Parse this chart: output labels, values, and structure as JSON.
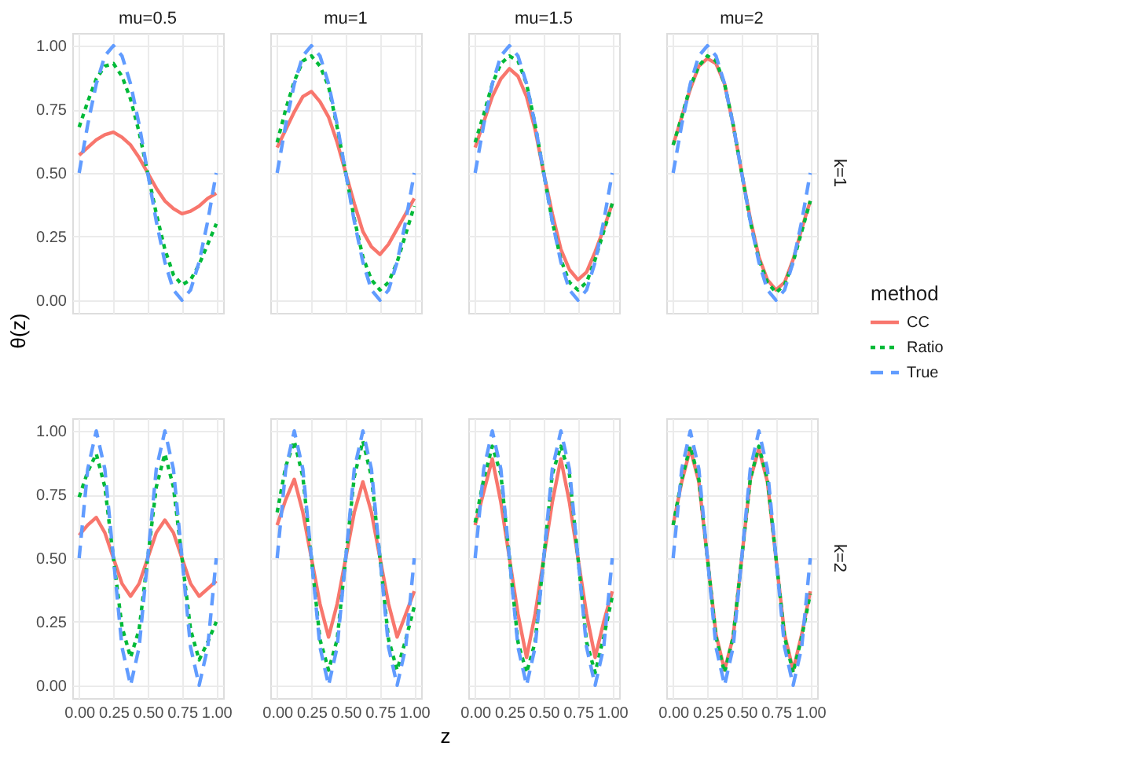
{
  "chart_data": [
    {
      "type": "line",
      "title": "mu=0.5",
      "ylabel": "θ(z)",
      "tick_labels": "y",
      "grid": true,
      "xlim": [
        -0.05,
        1.05
      ],
      "ylim": [
        -0.05,
        1.05
      ],
      "xticks": [
        0,
        0.25,
        0.5,
        0.75,
        1
      ],
      "yticks": [
        {
          "value": 0,
          "label": "0.00"
        },
        {
          "value": 0.25,
          "label": "0.25"
        },
        {
          "value": 0.5,
          "label": "0.50"
        },
        {
          "value": 0.75,
          "label": "0.75"
        },
        {
          "value": 1,
          "label": "1.00"
        }
      ],
      "x": [
        0,
        0.0625,
        0.125,
        0.1875,
        0.25,
        0.3125,
        0.375,
        0.4375,
        0.5,
        0.5625,
        0.625,
        0.6875,
        0.75,
        0.8125,
        0.875,
        0.9375,
        1
      ],
      "series": [
        {
          "color": "#f8766d",
          "line_style": "solid",
          "values": [
            0.57,
            0.6,
            0.63,
            0.65,
            0.66,
            0.64,
            0.61,
            0.56,
            0.5,
            0.44,
            0.39,
            0.36,
            0.34,
            0.35,
            0.37,
            0.4,
            0.42
          ]
        },
        {
          "color": "#00ba38",
          "line_style": "dotted",
          "values": [
            0.68,
            0.78,
            0.87,
            0.92,
            0.93,
            0.88,
            0.79,
            0.66,
            0.5,
            0.34,
            0.2,
            0.1,
            0.06,
            0.08,
            0.14,
            0.22,
            0.3
          ]
        },
        {
          "color": "#619cff",
          "line_style": "dashed",
          "values": [
            0.5,
            0.69,
            0.85,
            0.96,
            1,
            0.96,
            0.85,
            0.69,
            0.5,
            0.31,
            0.15,
            0.04,
            0,
            0.04,
            0.15,
            0.31,
            0.5
          ]
        }
      ]
    },
    {
      "type": "line",
      "title": "mu=1",
      "tick_labels": false,
      "grid": true,
      "xlim": [
        -0.05,
        1.05
      ],
      "ylim": [
        -0.05,
        1.05
      ],
      "xticks": [
        0,
        0.25,
        0.5,
        0.75,
        1
      ],
      "yticks": [
        0,
        0.25,
        0.5,
        0.75,
        1
      ],
      "x": [
        0,
        0.0625,
        0.125,
        0.1875,
        0.25,
        0.3125,
        0.375,
        0.4375,
        0.5,
        0.5625,
        0.625,
        0.6875,
        0.75,
        0.8125,
        0.875,
        0.9375,
        1
      ],
      "series": [
        {
          "color": "#f8766d",
          "line_style": "solid",
          "values": [
            0.6,
            0.67,
            0.74,
            0.8,
            0.82,
            0.78,
            0.72,
            0.62,
            0.5,
            0.38,
            0.27,
            0.21,
            0.18,
            0.22,
            0.28,
            0.34,
            0.4
          ]
        },
        {
          "color": "#00ba38",
          "line_style": "dotted",
          "values": [
            0.62,
            0.75,
            0.86,
            0.94,
            0.96,
            0.92,
            0.84,
            0.68,
            0.5,
            0.32,
            0.17,
            0.08,
            0.04,
            0.07,
            0.15,
            0.26,
            0.37
          ]
        },
        {
          "color": "#619cff",
          "line_style": "dashed",
          "values": [
            0.5,
            0.69,
            0.85,
            0.96,
            1,
            0.96,
            0.85,
            0.69,
            0.5,
            0.31,
            0.15,
            0.04,
            0,
            0.04,
            0.15,
            0.31,
            0.5
          ]
        }
      ]
    },
    {
      "type": "line",
      "title": "mu=1.5",
      "tick_labels": false,
      "grid": true,
      "xlim": [
        -0.05,
        1.05
      ],
      "ylim": [
        -0.05,
        1.05
      ],
      "xticks": [
        0,
        0.25,
        0.5,
        0.75,
        1
      ],
      "yticks": [
        0,
        0.25,
        0.5,
        0.75,
        1
      ],
      "x": [
        0,
        0.0625,
        0.125,
        0.1875,
        0.25,
        0.3125,
        0.375,
        0.4375,
        0.5,
        0.5625,
        0.625,
        0.6875,
        0.75,
        0.8125,
        0.875,
        0.9375,
        1
      ],
      "series": [
        {
          "color": "#f8766d",
          "line_style": "solid",
          "values": [
            0.6,
            0.7,
            0.8,
            0.87,
            0.91,
            0.88,
            0.8,
            0.67,
            0.5,
            0.34,
            0.2,
            0.12,
            0.08,
            0.11,
            0.19,
            0.28,
            0.38
          ]
        },
        {
          "color": "#00ba38",
          "line_style": "dotted",
          "values": [
            0.62,
            0.73,
            0.85,
            0.93,
            0.96,
            0.94,
            0.85,
            0.69,
            0.5,
            0.31,
            0.16,
            0.07,
            0.04,
            0.07,
            0.16,
            0.27,
            0.38
          ]
        },
        {
          "color": "#619cff",
          "line_style": "dashed",
          "values": [
            0.5,
            0.69,
            0.85,
            0.96,
            1,
            0.96,
            0.85,
            0.69,
            0.5,
            0.31,
            0.15,
            0.04,
            0,
            0.04,
            0.15,
            0.31,
            0.5
          ]
        }
      ]
    },
    {
      "type": "line",
      "title": "mu=2",
      "y2label": "k=1",
      "tick_labels": false,
      "grid": true,
      "legend": "right",
      "legend_title": "method",
      "xlim": [
        -0.05,
        1.05
      ],
      "ylim": [
        -0.05,
        1.05
      ],
      "xticks": [
        0,
        0.25,
        0.5,
        0.75,
        1
      ],
      "yticks": [
        0,
        0.25,
        0.5,
        0.75,
        1
      ],
      "x": [
        0,
        0.0625,
        0.125,
        0.1875,
        0.25,
        0.3125,
        0.375,
        0.4375,
        0.5,
        0.5625,
        0.625,
        0.6875,
        0.75,
        0.8125,
        0.875,
        0.9375,
        1
      ],
      "series": [
        {
          "name": "CC",
          "color": "#f8766d",
          "line_style": "solid",
          "values": [
            0.61,
            0.72,
            0.83,
            0.92,
            0.95,
            0.93,
            0.85,
            0.69,
            0.5,
            0.32,
            0.17,
            0.08,
            0.04,
            0.07,
            0.16,
            0.28,
            0.39
          ]
        },
        {
          "name": "Ratio",
          "color": "#00ba38",
          "line_style": "dotted",
          "values": [
            0.61,
            0.72,
            0.84,
            0.92,
            0.96,
            0.94,
            0.85,
            0.69,
            0.5,
            0.31,
            0.16,
            0.07,
            0.03,
            0.06,
            0.15,
            0.27,
            0.39
          ]
        },
        {
          "name": "True",
          "color": "#619cff",
          "line_style": "dashed",
          "values": [
            0.5,
            0.69,
            0.85,
            0.96,
            1,
            0.96,
            0.85,
            0.69,
            0.5,
            0.31,
            0.15,
            0.04,
            0,
            0.04,
            0.15,
            0.31,
            0.5
          ]
        }
      ]
    },
    {
      "type": "line",
      "grid": true,
      "xlim": [
        -0.05,
        1.05
      ],
      "ylim": [
        -0.05,
        1.05
      ],
      "xticks": [
        {
          "value": 0,
          "label": "0.00"
        },
        {
          "value": 0.25,
          "label": "0.25"
        },
        {
          "value": 0.5,
          "label": "0.50"
        },
        {
          "value": 0.75,
          "label": "0.75"
        },
        {
          "value": 1,
          "label": "1.00"
        }
      ],
      "yticks": [
        {
          "value": 0,
          "label": "0.00"
        },
        {
          "value": 0.25,
          "label": "0.25"
        },
        {
          "value": 0.5,
          "label": "0.50"
        },
        {
          "value": 0.75,
          "label": "0.75"
        },
        {
          "value": 1,
          "label": "1.00"
        }
      ],
      "x": [
        0,
        0.0625,
        0.125,
        0.1875,
        0.25,
        0.3125,
        0.375,
        0.4375,
        0.5,
        0.5625,
        0.625,
        0.6875,
        0.75,
        0.8125,
        0.875,
        0.9375,
        1
      ],
      "series": [
        {
          "color": "#f8766d",
          "line_style": "solid",
          "values": [
            0.59,
            0.63,
            0.66,
            0.6,
            0.5,
            0.4,
            0.35,
            0.4,
            0.5,
            0.6,
            0.65,
            0.6,
            0.5,
            0.4,
            0.35,
            0.38,
            0.41
          ]
        },
        {
          "color": "#00ba38",
          "line_style": "dotted",
          "values": [
            0.74,
            0.84,
            0.91,
            0.78,
            0.5,
            0.23,
            0.11,
            0.22,
            0.5,
            0.78,
            0.91,
            0.78,
            0.5,
            0.22,
            0.1,
            0.17,
            0.25
          ]
        },
        {
          "color": "#619cff",
          "line_style": "dashed",
          "values": [
            0.5,
            0.85,
            1,
            0.85,
            0.5,
            0.15,
            0,
            0.15,
            0.5,
            0.85,
            1,
            0.85,
            0.5,
            0.15,
            0,
            0.15,
            0.5
          ]
        }
      ]
    },
    {
      "type": "line",
      "xlabel": "z",
      "tick_labels": "x",
      "grid": true,
      "xlim": [
        -0.05,
        1.05
      ],
      "ylim": [
        -0.05,
        1.05
      ],
      "xticks": [
        {
          "value": 0,
          "label": "0.00"
        },
        {
          "value": 0.25,
          "label": "0.25"
        },
        {
          "value": 0.5,
          "label": "0.50"
        },
        {
          "value": 0.75,
          "label": "0.75"
        },
        {
          "value": 1,
          "label": "1.00"
        }
      ],
      "yticks": [
        0,
        0.25,
        0.5,
        0.75,
        1
      ],
      "x": [
        0,
        0.0625,
        0.125,
        0.1875,
        0.25,
        0.3125,
        0.375,
        0.4375,
        0.5,
        0.5625,
        0.625,
        0.6875,
        0.75,
        0.8125,
        0.875,
        0.9375,
        1
      ],
      "series": [
        {
          "color": "#f8766d",
          "line_style": "solid",
          "values": [
            0.63,
            0.73,
            0.81,
            0.68,
            0.5,
            0.32,
            0.19,
            0.32,
            0.5,
            0.68,
            0.8,
            0.68,
            0.5,
            0.32,
            0.19,
            0.28,
            0.37
          ]
        },
        {
          "color": "#00ba38",
          "line_style": "dotted",
          "values": [
            0.68,
            0.86,
            0.96,
            0.82,
            0.5,
            0.18,
            0.06,
            0.18,
            0.5,
            0.82,
            0.96,
            0.82,
            0.5,
            0.18,
            0.06,
            0.18,
            0.31
          ]
        },
        {
          "color": "#619cff",
          "line_style": "dashed",
          "values": [
            0.5,
            0.85,
            1,
            0.85,
            0.5,
            0.15,
            0,
            0.15,
            0.5,
            0.85,
            1,
            0.85,
            0.5,
            0.15,
            0,
            0.15,
            0.5
          ]
        }
      ]
    },
    {
      "type": "line",
      "tick_labels": "x",
      "grid": true,
      "xlim": [
        -0.05,
        1.05
      ],
      "ylim": [
        -0.05,
        1.05
      ],
      "xticks": [
        {
          "value": 0,
          "label": "0.00"
        },
        {
          "value": 0.25,
          "label": "0.25"
        },
        {
          "value": 0.5,
          "label": "0.50"
        },
        {
          "value": 0.75,
          "label": "0.75"
        },
        {
          "value": 1,
          "label": "1.00"
        }
      ],
      "yticks": [
        0,
        0.25,
        0.5,
        0.75,
        1
      ],
      "x": [
        0,
        0.0625,
        0.125,
        0.1875,
        0.25,
        0.3125,
        0.375,
        0.4375,
        0.5,
        0.5625,
        0.625,
        0.6875,
        0.75,
        0.8125,
        0.875,
        0.9375,
        1
      ],
      "series": [
        {
          "color": "#f8766d",
          "line_style": "solid",
          "values": [
            0.63,
            0.76,
            0.89,
            0.72,
            0.5,
            0.28,
            0.11,
            0.28,
            0.5,
            0.72,
            0.89,
            0.72,
            0.5,
            0.28,
            0.11,
            0.25,
            0.37
          ]
        },
        {
          "color": "#00ba38",
          "line_style": "dotted",
          "values": [
            0.64,
            0.81,
            0.94,
            0.83,
            0.5,
            0.17,
            0.05,
            0.17,
            0.5,
            0.83,
            0.94,
            0.83,
            0.5,
            0.17,
            0.05,
            0.19,
            0.35
          ]
        },
        {
          "color": "#619cff",
          "line_style": "dashed",
          "values": [
            0.5,
            0.85,
            1,
            0.85,
            0.5,
            0.15,
            0,
            0.15,
            0.5,
            0.85,
            1,
            0.85,
            0.5,
            0.15,
            0,
            0.15,
            0.5
          ]
        }
      ]
    },
    {
      "type": "line",
      "y2label": "k=2",
      "tick_labels": "x",
      "grid": true,
      "xlim": [
        -0.05,
        1.05
      ],
      "ylim": [
        -0.05,
        1.05
      ],
      "xticks": [
        {
          "value": 0,
          "label": "0.00"
        },
        {
          "value": 0.25,
          "label": "0.25"
        },
        {
          "value": 0.5,
          "label": "0.50"
        },
        {
          "value": 0.75,
          "label": "0.75"
        },
        {
          "value": 1,
          "label": "1.00"
        }
      ],
      "yticks": [
        0,
        0.25,
        0.5,
        0.75,
        1
      ],
      "x": [
        0,
        0.0625,
        0.125,
        0.1875,
        0.25,
        0.3125,
        0.375,
        0.4375,
        0.5,
        0.5625,
        0.625,
        0.6875,
        0.75,
        0.8125,
        0.875,
        0.9375,
        1
      ],
      "series": [
        {
          "color": "#f8766d",
          "line_style": "solid",
          "values": [
            0.63,
            0.8,
            0.93,
            0.8,
            0.5,
            0.2,
            0.06,
            0.19,
            0.5,
            0.81,
            0.93,
            0.8,
            0.5,
            0.2,
            0.06,
            0.2,
            0.37
          ]
        },
        {
          "color": "#00ba38",
          "line_style": "dotted",
          "values": [
            0.63,
            0.81,
            0.94,
            0.81,
            0.5,
            0.19,
            0.05,
            0.19,
            0.5,
            0.81,
            0.94,
            0.81,
            0.5,
            0.19,
            0.05,
            0.19,
            0.36
          ]
        },
        {
          "color": "#619cff",
          "line_style": "dashed",
          "values": [
            0.5,
            0.85,
            1,
            0.85,
            0.5,
            0.15,
            0,
            0.15,
            0.5,
            0.85,
            1,
            0.85,
            0.5,
            0.15,
            0,
            0.15,
            0.5
          ]
        }
      ]
    }
  ]
}
